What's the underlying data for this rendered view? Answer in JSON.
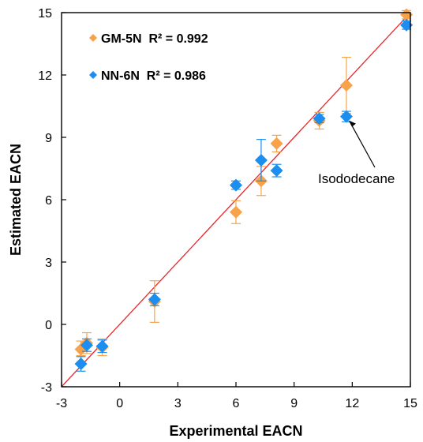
{
  "chart_data": {
    "type": "scatter",
    "xlabel": "Experimental EACN",
    "ylabel": "Estimated EACN",
    "xlim": [
      -3,
      15
    ],
    "ylim": [
      -3,
      15
    ],
    "xticks": [
      -3,
      0,
      3,
      6,
      9,
      12,
      15
    ],
    "yticks": [
      -3,
      0,
      3,
      6,
      9,
      12,
      15
    ],
    "grid": false,
    "legend_position": "top-left",
    "parity_line": {
      "from": [
        -3,
        -3
      ],
      "to": [
        15,
        15
      ],
      "color": "#e8262b"
    },
    "series": [
      {
        "name": "GM-5N  R² = 0.992",
        "color": "#f8a24a",
        "marker": "diamond",
        "points": [
          {
            "x": -2.0,
            "y": -1.2,
            "err_low": 0.3,
            "err_high": 0.4
          },
          {
            "x": -1.7,
            "y": -0.9,
            "err_low": 0.5,
            "err_high": 0.5
          },
          {
            "x": -0.9,
            "y": -1.1,
            "err_low": 0.4,
            "err_high": 0.4
          },
          {
            "x": 1.8,
            "y": 1.1,
            "err_low": 1.0,
            "err_high": 1.0
          },
          {
            "x": 6.0,
            "y": 5.4,
            "err_low": 0.55,
            "err_high": 0.55
          },
          {
            "x": 7.3,
            "y": 6.9,
            "err_low": 0.7,
            "err_high": 0.7
          },
          {
            "x": 8.1,
            "y": 8.7,
            "err_low": 0.4,
            "err_high": 0.4
          },
          {
            "x": 10.3,
            "y": 9.8,
            "err_low": 0.4,
            "err_high": 0.4
          },
          {
            "x": 11.7,
            "y": 11.5,
            "err_low": 1.35,
            "err_high": 1.35
          },
          {
            "x": 14.8,
            "y": 14.9,
            "err_low": 0.2,
            "err_high": 0.2
          }
        ]
      },
      {
        "name": "NN-6N  R² = 0.986",
        "color": "#1b8ef0",
        "marker": "diamond",
        "points": [
          {
            "x": -2.0,
            "y": -1.9,
            "err_low": 0.35,
            "err_high": 0.35
          },
          {
            "x": -1.7,
            "y": -1.0,
            "err_low": 0.3,
            "err_high": 0.3
          },
          {
            "x": -0.9,
            "y": -1.05,
            "err_low": 0.3,
            "err_high": 0.3
          },
          {
            "x": 1.8,
            "y": 1.2,
            "err_low": 0.3,
            "err_high": 0.3
          },
          {
            "x": 6.0,
            "y": 6.7,
            "err_low": 0.2,
            "err_high": 0.2
          },
          {
            "x": 7.3,
            "y": 7.9,
            "err_low": 1.0,
            "err_high": 1.0
          },
          {
            "x": 8.1,
            "y": 7.4,
            "err_low": 0.3,
            "err_high": 0.3
          },
          {
            "x": 10.3,
            "y": 9.9,
            "err_low": 0.2,
            "err_high": 0.2
          },
          {
            "x": 11.7,
            "y": 10.0,
            "err_low": 0.25,
            "err_high": 0.25
          },
          {
            "x": 14.8,
            "y": 14.4,
            "err_low": 0.2,
            "err_high": 0.2
          }
        ]
      }
    ],
    "annotations": [
      {
        "text": "Isododecane",
        "points_to": {
          "x": 11.7,
          "y": 10.0
        }
      }
    ]
  }
}
